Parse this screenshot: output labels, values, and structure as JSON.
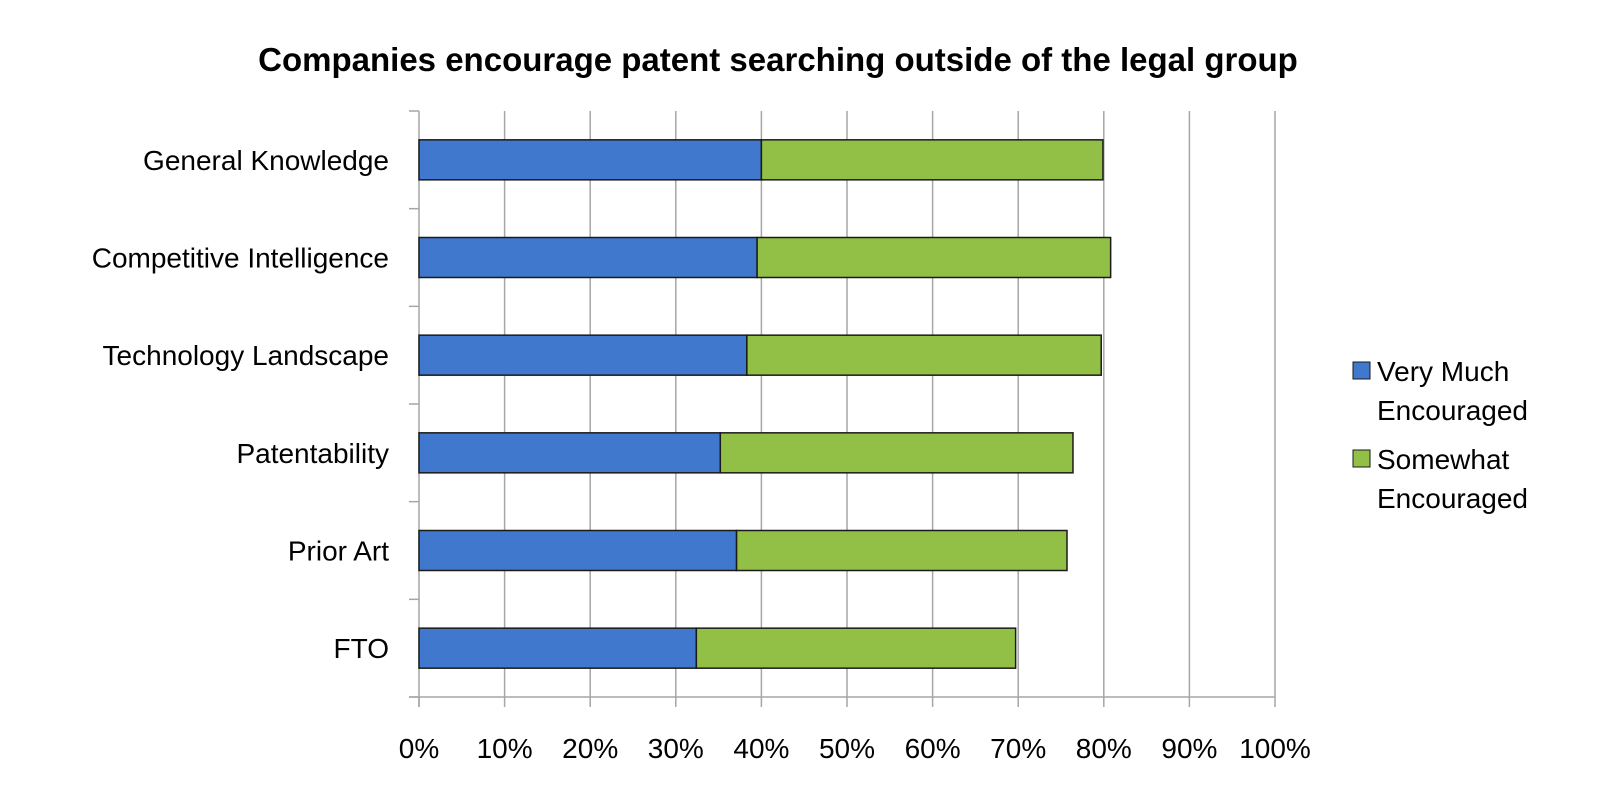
{
  "chart_data": {
    "type": "bar",
    "orientation": "horizontal",
    "stacked": true,
    "title": "Companies encourage patent searching outside of the legal group",
    "xlabel": "",
    "ylabel": "",
    "categories": [
      "General Knowledge",
      "Competitive Intelligence",
      "Technology Landscape",
      "Patentability",
      "Prior Art",
      "FTO"
    ],
    "series": [
      {
        "name": "Very Much Encouraged",
        "color": "#3f78cc",
        "values": [
          40,
          39.5,
          38.3,
          35.2,
          37.1,
          32.4
        ]
      },
      {
        "name": "Somewhat Encouraged",
        "color": "#92c047",
        "values": [
          39.9,
          41.3,
          41.4,
          41.2,
          38.6,
          37.3
        ]
      }
    ],
    "xlim": [
      0,
      100
    ],
    "x_ticks": [
      "0%",
      "10%",
      "20%",
      "30%",
      "40%",
      "50%",
      "60%",
      "70%",
      "80%",
      "90%",
      "100%"
    ],
    "grid": true,
    "grid_color": "#a6a6a6",
    "legend_position": "right",
    "legend": [
      {
        "line1": "Very Much",
        "line2": "Encouraged"
      },
      {
        "line1": "Somewhat",
        "line2": "Encouraged"
      }
    ]
  }
}
